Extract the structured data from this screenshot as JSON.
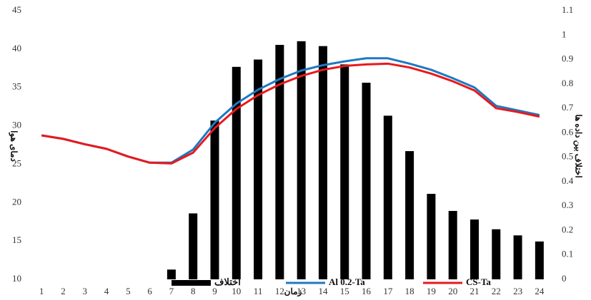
{
  "chart_data": {
    "type": "combo",
    "categories": [
      "1",
      "2",
      "3",
      "4",
      "5",
      "6",
      "7",
      "8",
      "9",
      "10",
      "11",
      "12",
      "13",
      "14",
      "15",
      "16",
      "17",
      "18",
      "19",
      "20",
      "21",
      "22",
      "23",
      "24"
    ],
    "x_label": "زمان",
    "y_label": "دمای هوا",
    "y2_label": "اختلاف بین داده ها",
    "ylim": [
      10,
      45
    ],
    "yticks": [
      10,
      15,
      20,
      25,
      30,
      35,
      40,
      45
    ],
    "y2lim": [
      0,
      1.1
    ],
    "y2ticks": [
      0,
      0.1,
      0.2,
      0.3,
      0.4,
      0.5,
      0.6,
      0.7,
      0.8,
      0.9,
      1,
      1.1
    ],
    "series": [
      {
        "name": "اختلاف",
        "type": "bar",
        "axis": "y2",
        "color": "#000000",
        "values": [
          0,
          0,
          0,
          0,
          0,
          0,
          0.04,
          0.27,
          0.65,
          0.87,
          0.9,
          0.96,
          0.975,
          0.955,
          0.88,
          0.805,
          0.67,
          0.525,
          0.35,
          0.28,
          0.245,
          0.205,
          0.18,
          0.155
        ]
      },
      {
        "name": "Al 0.2-Ta",
        "type": "line",
        "color": "#1f78c1",
        "values": [
          28.75,
          28.3,
          27.6,
          27.0,
          26.0,
          25.2,
          25.2,
          26.9,
          30.4,
          32.9,
          34.7,
          36.1,
          37.2,
          37.9,
          38.4,
          38.8,
          38.8,
          38.1,
          37.3,
          36.2,
          35.0,
          32.6,
          32.0,
          31.4
        ]
      },
      {
        "name": "CS-Ta",
        "type": "line",
        "color": "#e8191c",
        "values": [
          28.75,
          28.3,
          27.6,
          27.0,
          26.0,
          25.2,
          25.1,
          26.5,
          29.7,
          32.2,
          34.0,
          35.4,
          36.5,
          37.3,
          37.8,
          38.0,
          38.1,
          37.6,
          36.8,
          35.8,
          34.6,
          32.3,
          31.8,
          31.2
        ]
      }
    ],
    "legend_position": "bottom"
  }
}
